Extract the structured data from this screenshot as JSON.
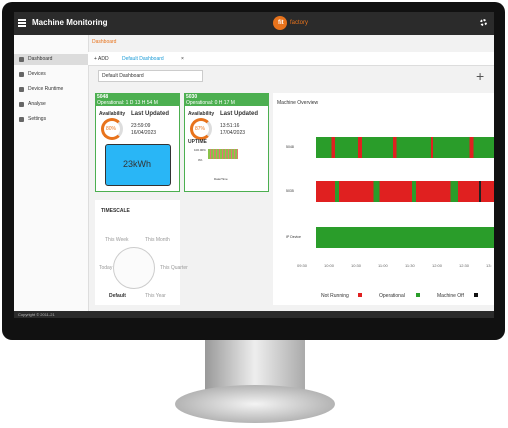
{
  "header": {
    "title": "Machine Monitoring",
    "logo_a": "fit",
    "logo_b": "factory"
  },
  "breadcrumb": "Dashboard",
  "sidebar": [
    "Dashboard",
    "Devices",
    "Device Runtime",
    "Analyse",
    "Settings"
  ],
  "tabs": {
    "add": "+ ADD",
    "active": "Default Dashboard",
    "close": "×"
  },
  "dashboard_name": "Default Dashboard",
  "cards": [
    {
      "id": "5048",
      "status": "Operational: 1 D 13 H 54 M",
      "availability_label": "Availability",
      "availability": "80%",
      "updated_label": "Last Updated",
      "time": "23:59:09",
      "date": "16/04/2023",
      "energy": "23kWh"
    },
    {
      "id": "5030",
      "status": "Operational: 0 H 17 M",
      "availability_label": "Availability",
      "availability": "87%",
      "updated_label": "Last Updated",
      "time": "13:51:16",
      "date": "17/04/2023",
      "uptime_label": "UPTIME",
      "uptime_max": "100.00%",
      "uptime_min": "0%",
      "uptime_axis": "Date/Time"
    }
  ],
  "timescale": {
    "title": "TIMESCALE",
    "options": [
      "This Week",
      "This Month",
      "Today",
      "This Quarter",
      "Default",
      "This Year"
    ]
  },
  "overview": {
    "title": "Machine Overview",
    "rows": [
      "5048",
      "5035",
      "IP Device"
    ],
    "times": [
      "09:30",
      "10:00",
      "10:30",
      "11:00",
      "11:30",
      "12:00",
      "12:30",
      "13:"
    ],
    "legend": [
      "Not Running",
      "Operational",
      "Machine Off"
    ]
  },
  "footer": "Copyright © 2011-21"
}
